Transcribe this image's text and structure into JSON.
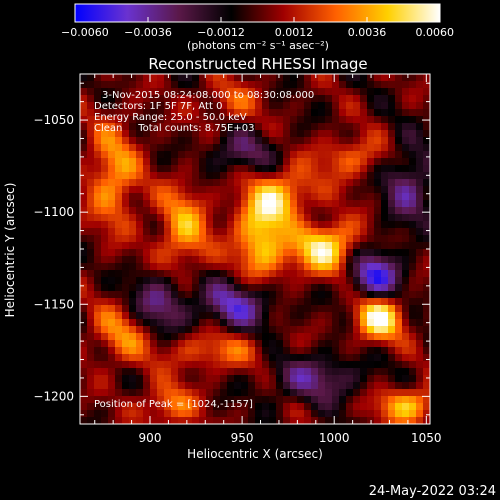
{
  "chart_data": {
    "type": "heatmap",
    "title": "Reconstructed RHESSI Image",
    "xlabel": "Heliocentric X (arcsec)",
    "ylabel": "Heliocentric Y (arcsec)",
    "xlim": [
      862,
      1052
    ],
    "ylim": [
      -1215,
      -1025
    ],
    "x_ticks": [
      900,
      950,
      1000,
      1050
    ],
    "y_ticks": [
      -1050,
      -1100,
      -1150,
      -1200
    ],
    "colorbar": {
      "label": "(photons cm⁻² s⁻¹ asec⁻²)",
      "range": [
        -0.006,
        0.006
      ],
      "tick_labels": [
        "−0.0060",
        "−0.0036",
        "−0.0012",
        "0.0012",
        "0.0036",
        "0.0060"
      ],
      "colormap": [
        "#0000ff",
        "#6a32d0",
        "#5a1848",
        "#000000",
        "#a00000",
        "#ff6000",
        "#ffd000",
        "#ffffff"
      ]
    },
    "annotations": {
      "time_range": "3-Nov-2015 08:24:08.000 to 08:30:08.000",
      "detectors": "Detectors: 1F 5F 7F, Att 0",
      "energy": "Energy Range: 25.0 - 50.0 keV",
      "clean": "Clean     Total counts: 8.75E+03",
      "peak": "Position of Peak = [1024,-1157]"
    },
    "sources": [
      {
        "x": 973,
        "y": -1096,
        "amp": 0.0055,
        "sx": 14,
        "sy": 12
      },
      {
        "x": 993,
        "y": -1117,
        "amp": 0.006,
        "sx": 13,
        "sy": 11
      },
      {
        "x": 960,
        "y": -1118,
        "amp": 0.004,
        "sx": 10,
        "sy": 16
      },
      {
        "x": 1024,
        "y": -1157,
        "amp": 0.006,
        "sx": 9,
        "sy": 9
      },
      {
        "x": 918,
        "y": -1110,
        "amp": 0.0035,
        "sx": 10,
        "sy": 18
      },
      {
        "x": 880,
        "y": -1080,
        "amp": 0.0035,
        "sx": 10,
        "sy": 20
      },
      {
        "x": 885,
        "y": -1165,
        "amp": 0.003,
        "sx": 12,
        "sy": 12
      },
      {
        "x": 935,
        "y": -1175,
        "amp": 0.0025,
        "sx": 20,
        "sy": 8
      },
      {
        "x": 1040,
        "y": -1205,
        "amp": 0.004,
        "sx": 12,
        "sy": 7
      },
      {
        "x": 910,
        "y": -1205,
        "amp": 0.003,
        "sx": 10,
        "sy": 8
      },
      {
        "x": 1010,
        "y": -1070,
        "amp": 0.0025,
        "sx": 14,
        "sy": 8
      },
      {
        "x": 943,
        "y": -1040,
        "amp": 0.002,
        "sx": 12,
        "sy": 8
      },
      {
        "x": 983,
        "y": -1105,
        "amp": -0.0045,
        "sx": 12,
        "sy": 10
      },
      {
        "x": 1022,
        "y": -1135,
        "amp": -0.005,
        "sx": 10,
        "sy": 10
      },
      {
        "x": 948,
        "y": -1150,
        "amp": -0.004,
        "sx": 14,
        "sy": 10
      },
      {
        "x": 905,
        "y": -1150,
        "amp": -0.0035,
        "sx": 12,
        "sy": 12
      },
      {
        "x": 990,
        "y": -1190,
        "amp": -0.003,
        "sx": 18,
        "sy": 9
      },
      {
        "x": 1040,
        "y": -1085,
        "amp": -0.003,
        "sx": 10,
        "sy": 16
      },
      {
        "x": 950,
        "y": -1068,
        "amp": -0.0025,
        "sx": 14,
        "sy": 8
      }
    ]
  },
  "timestamp": "24-May-2022 03:24"
}
